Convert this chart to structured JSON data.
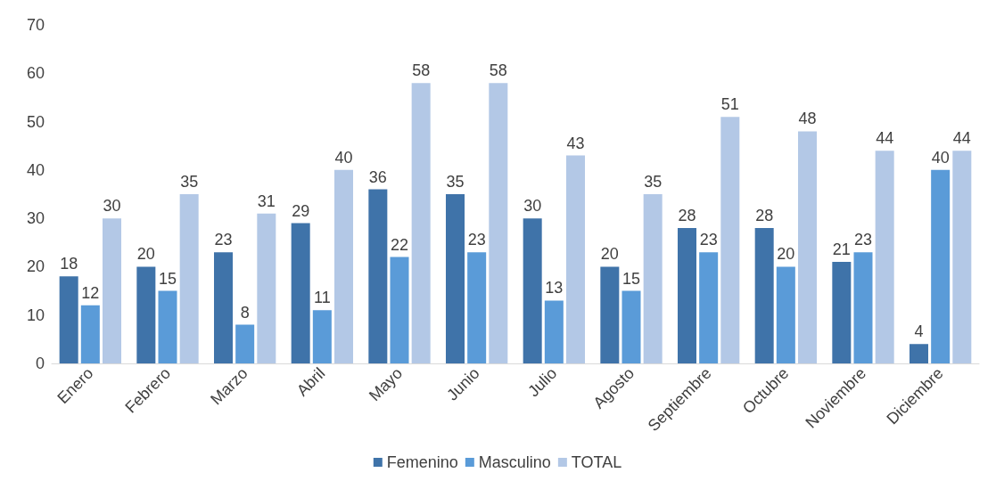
{
  "chart_data": {
    "type": "bar",
    "categories": [
      "Enero",
      "Febrero",
      "Marzo",
      "Abril",
      "Mayo",
      "Junio",
      "Julio",
      "Agosto",
      "Septiembre",
      "Octubre",
      "Noviembre",
      "Diciembre"
    ],
    "series": [
      {
        "name": "Femenino",
        "color": "#3f73a9",
        "values": [
          18,
          20,
          23,
          29,
          36,
          35,
          30,
          20,
          28,
          28,
          21,
          4
        ]
      },
      {
        "name": "Masculino",
        "color": "#5a9bd8",
        "values": [
          12,
          15,
          8,
          11,
          22,
          23,
          13,
          15,
          23,
          20,
          23,
          40
        ]
      },
      {
        "name": "TOTAL",
        "color": "#b3c8e6",
        "values": [
          30,
          35,
          31,
          40,
          58,
          58,
          43,
          35,
          51,
          48,
          44,
          44
        ]
      }
    ],
    "ylim": [
      0,
      70
    ],
    "yticks": [
      0,
      10,
      20,
      30,
      40,
      50,
      60,
      70
    ],
    "grid": false,
    "legend": "bottom",
    "data_labels": true
  }
}
